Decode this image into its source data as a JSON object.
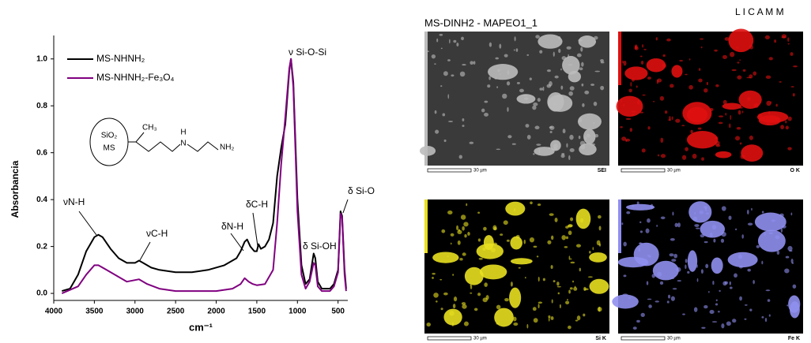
{
  "chart_data": {
    "type": "line",
    "xlabel": "cm⁻¹",
    "ylabel": "Absorbancia",
    "xlim": [
      4000,
      380
    ],
    "ylim": [
      -0.03,
      1.1
    ],
    "xticks": [
      4000,
      3500,
      3000,
      2500,
      2000,
      1500,
      1000,
      500
    ],
    "yticks": [
      {
        "value": 0,
        "label": "0.0"
      },
      {
        "value": 0.2,
        "label": "0.2"
      },
      {
        "value": 0.4,
        "label": "0.4"
      },
      {
        "value": 0.6,
        "label": "0.6"
      },
      {
        "value": 0.8,
        "label": "0.8"
      },
      {
        "value": 1,
        "label": "1.0"
      }
    ],
    "series": [
      {
        "name": "MS-NHNH₂",
        "color": "#000000",
        "x": [
          3900,
          3800,
          3700,
          3600,
          3500,
          3450,
          3400,
          3300,
          3200,
          3100,
          3000,
          2950,
          2900,
          2800,
          2700,
          2500,
          2300,
          2100,
          1900,
          1750,
          1700,
          1650,
          1620,
          1580,
          1530,
          1500,
          1480,
          1450,
          1400,
          1350,
          1300,
          1250,
          1200,
          1150,
          1100,
          1080,
          1050,
          1000,
          950,
          900,
          850,
          800,
          780,
          750,
          700,
          600,
          550,
          500,
          470,
          450,
          420,
          400
        ],
        "values": [
          0.01,
          0.02,
          0.08,
          0.18,
          0.24,
          0.25,
          0.24,
          0.19,
          0.15,
          0.13,
          0.13,
          0.14,
          0.13,
          0.11,
          0.1,
          0.09,
          0.09,
          0.1,
          0.12,
          0.15,
          0.18,
          0.22,
          0.23,
          0.2,
          0.18,
          0.18,
          0.21,
          0.19,
          0.2,
          0.23,
          0.3,
          0.5,
          0.62,
          0.72,
          0.95,
          1.0,
          0.9,
          0.4,
          0.12,
          0.04,
          0.06,
          0.17,
          0.15,
          0.05,
          0.02,
          0.02,
          0.04,
          0.1,
          0.35,
          0.33,
          0.1,
          0.02
        ]
      },
      {
        "name": "MS-NHNH₂-Fe₃O₄",
        "color": "#800080",
        "x": [
          3900,
          3700,
          3600,
          3500,
          3450,
          3350,
          3200,
          3100,
          2950,
          2850,
          2700,
          2500,
          2000,
          1800,
          1700,
          1650,
          1600,
          1550,
          1500,
          1400,
          1300,
          1250,
          1200,
          1150,
          1100,
          1080,
          1050,
          1000,
          950,
          900,
          850,
          800,
          780,
          750,
          700,
          600,
          550,
          500,
          470,
          450,
          420,
          400
        ],
        "values": [
          0.0,
          0.03,
          0.08,
          0.12,
          0.12,
          0.1,
          0.07,
          0.05,
          0.06,
          0.04,
          0.02,
          0.01,
          0.01,
          0.02,
          0.04,
          0.065,
          0.05,
          0.04,
          0.035,
          0.04,
          0.1,
          0.3,
          0.55,
          0.75,
          0.96,
          1.0,
          0.88,
          0.35,
          0.08,
          0.02,
          0.05,
          0.13,
          0.12,
          0.03,
          0.01,
          0.01,
          0.03,
          0.09,
          0.34,
          0.32,
          0.08,
          0.01
        ]
      }
    ],
    "annotations": [
      "νN-H",
      "νC-H",
      "δN-H",
      "δC-H",
      "ν Si-O-Si",
      "δ Si-OH",
      "δ Si-O"
    ],
    "inset": {
      "support": "SiO₂",
      "support_label": "MS",
      "methyl": "CH₃",
      "h": "H",
      "n": "N",
      "amine": "NH₂"
    }
  },
  "eds_maps": {
    "title": "MS-DINH2 - MAPEO1_1",
    "lab": "L I C A M M",
    "panels": [
      {
        "scale": "30 µm",
        "label": "SEI"
      },
      {
        "scale": "30 µm",
        "label": "O K"
      },
      {
        "scale": "30 µm",
        "label": "Si K"
      },
      {
        "scale": "30 µm",
        "label": "Fe K"
      }
    ]
  }
}
